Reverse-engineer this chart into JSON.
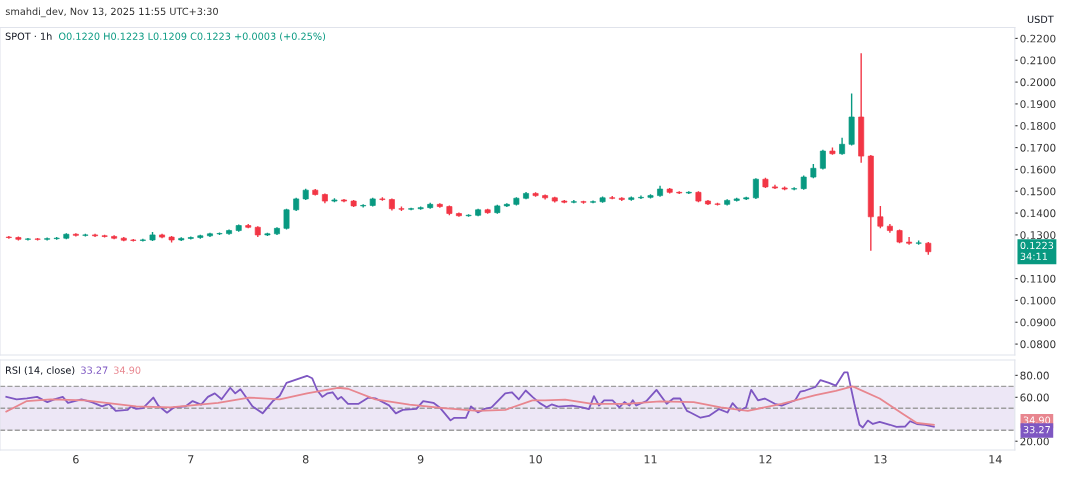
{
  "chart_data": [
    {
      "type": "candlestick",
      "title": "SPOT · 1h",
      "annotations": [
        "smahdi_dev, Nov 13, 2025 11:55 UTC+3:30",
        "O0.1220 H0.1223 L0.1209 C0.1223 +0.0003 (+0.25%)",
        "USDT",
        "0.1223",
        "34:11"
      ],
      "x": [
        5.417,
        5.5,
        5.583,
        5.667,
        5.75,
        5.833,
        5.917,
        6,
        6.083,
        6.167,
        6.25,
        6.333,
        6.417,
        6.5,
        6.583,
        6.667,
        6.75,
        6.833,
        6.917,
        7,
        7.083,
        7.167,
        7.25,
        7.333,
        7.417,
        7.5,
        7.583,
        7.667,
        7.75,
        7.833,
        7.917,
        8,
        8.083,
        8.167,
        8.25,
        8.333,
        8.417,
        8.5,
        8.583,
        8.667,
        8.75,
        8.833,
        8.917,
        9,
        9.083,
        9.167,
        9.25,
        9.333,
        9.417,
        9.5,
        9.583,
        9.667,
        9.75,
        9.833,
        9.917,
        10,
        10.083,
        10.167,
        10.25,
        10.333,
        10.417,
        10.5,
        10.583,
        10.667,
        10.75,
        10.833,
        10.917,
        11,
        11.083,
        11.167,
        11.25,
        11.333,
        11.417,
        11.5,
        11.583,
        11.667,
        11.75,
        11.833,
        11.917,
        12,
        12.083,
        12.167,
        12.25,
        12.333,
        12.417,
        12.5,
        12.583,
        12.667,
        12.75,
        12.833,
        12.917,
        13,
        13.083,
        13.167,
        13.25,
        13.333,
        13.417
      ],
      "ohlc": [
        [
          0.129,
          0.1295,
          0.1283,
          0.1288
        ],
        [
          0.1288,
          0.1293,
          0.1275,
          0.128
        ],
        [
          0.128,
          0.1286,
          0.1275,
          0.1281
        ],
        [
          0.1281,
          0.1286,
          0.1275,
          0.128
        ],
        [
          0.128,
          0.1288,
          0.1275,
          0.1283
        ],
        [
          0.1283,
          0.129,
          0.1278,
          0.1285
        ],
        [
          0.1285,
          0.1308,
          0.128,
          0.1303
        ],
        [
          0.1303,
          0.1308,
          0.1293,
          0.1298
        ],
        [
          0.1298,
          0.1305,
          0.1293,
          0.13
        ],
        [
          0.13,
          0.1305,
          0.1291,
          0.1296
        ],
        [
          0.1296,
          0.1301,
          0.1288,
          0.1293
        ],
        [
          0.1293,
          0.1298,
          0.128,
          0.1285
        ],
        [
          0.1285,
          0.129,
          0.1271,
          0.1276
        ],
        [
          0.1276,
          0.1281,
          0.127,
          0.1275
        ],
        [
          0.1275,
          0.1282,
          0.127,
          0.1277
        ],
        [
          0.1277,
          0.1313,
          0.1272,
          0.13
        ],
        [
          0.13,
          0.1305,
          0.1285,
          0.129
        ],
        [
          0.129,
          0.1295,
          0.1265,
          0.1277
        ],
        [
          0.1277,
          0.1289,
          0.1272,
          0.1284
        ],
        [
          0.1284,
          0.1293,
          0.1279,
          0.1288
        ],
        [
          0.1288,
          0.1301,
          0.1283,
          0.1296
        ],
        [
          0.1296,
          0.131,
          0.1291,
          0.1305
        ],
        [
          0.1305,
          0.1311,
          0.13,
          0.1306
        ],
        [
          0.1306,
          0.1325,
          0.1301,
          0.132
        ],
        [
          0.132,
          0.1348,
          0.1315,
          0.1343
        ],
        [
          0.1343,
          0.135,
          0.133,
          0.1335
        ],
        [
          0.1335,
          0.134,
          0.129,
          0.13
        ],
        [
          0.13,
          0.131,
          0.1295,
          0.1305
        ],
        [
          0.1305,
          0.1335,
          0.13,
          0.133
        ],
        [
          0.133,
          0.142,
          0.1325,
          0.1415
        ],
        [
          0.1415,
          0.147,
          0.141,
          0.1465
        ],
        [
          0.1465,
          0.1512,
          0.146,
          0.1505
        ],
        [
          0.1505,
          0.151,
          0.148,
          0.1485
        ],
        [
          0.1485,
          0.149,
          0.1445,
          0.1455
        ],
        [
          0.1455,
          0.1468,
          0.145,
          0.146
        ],
        [
          0.146,
          0.1465,
          0.145,
          0.1455
        ],
        [
          0.1455,
          0.146,
          0.1428,
          0.1433
        ],
        [
          0.1433,
          0.144,
          0.1426,
          0.1435
        ],
        [
          0.1435,
          0.147,
          0.143,
          0.1465
        ],
        [
          0.1465,
          0.1472,
          0.1457,
          0.1462
        ],
        [
          0.1462,
          0.1467,
          0.1412,
          0.142
        ],
        [
          0.142,
          0.143,
          0.141,
          0.1418
        ],
        [
          0.1418,
          0.1425,
          0.1413,
          0.142
        ],
        [
          0.142,
          0.143,
          0.1415,
          0.1425
        ],
        [
          0.1425,
          0.1447,
          0.142,
          0.144
        ],
        [
          0.144,
          0.1445,
          0.1425,
          0.143
        ],
        [
          0.143,
          0.1435,
          0.139,
          0.1398
        ],
        [
          0.1398,
          0.1403,
          0.1383,
          0.1388
        ],
        [
          0.1388,
          0.1395,
          0.1383,
          0.139
        ],
        [
          0.139,
          0.142,
          0.1385,
          0.1415
        ],
        [
          0.1415,
          0.142,
          0.1397,
          0.1402
        ],
        [
          0.1402,
          0.1438,
          0.1397,
          0.1433
        ],
        [
          0.1433,
          0.1445,
          0.1428,
          0.144
        ],
        [
          0.144,
          0.1473,
          0.1435,
          0.1468
        ],
        [
          0.1468,
          0.1497,
          0.1463,
          0.149
        ],
        [
          0.149,
          0.1495,
          0.1475,
          0.148
        ],
        [
          0.148,
          0.1485,
          0.1462,
          0.147
        ],
        [
          0.147,
          0.1475,
          0.1448,
          0.1455
        ],
        [
          0.1455,
          0.146,
          0.1445,
          0.145
        ],
        [
          0.145,
          0.146,
          0.1445,
          0.1452
        ],
        [
          0.1452,
          0.1457,
          0.1443,
          0.145
        ],
        [
          0.145,
          0.1458,
          0.1445,
          0.1452
        ],
        [
          0.1452,
          0.1476,
          0.1447,
          0.147
        ],
        [
          0.147,
          0.1478,
          0.1463,
          0.1468
        ],
        [
          0.1468,
          0.1473,
          0.1455,
          0.1462
        ],
        [
          0.1462,
          0.1476,
          0.1457,
          0.147
        ],
        [
          0.147,
          0.148,
          0.1465,
          0.1472
        ],
        [
          0.1472,
          0.1486,
          0.1467,
          0.148
        ],
        [
          0.148,
          0.1525,
          0.1475,
          0.151
        ],
        [
          0.151,
          0.1515,
          0.149,
          0.1495
        ],
        [
          0.1495,
          0.15,
          0.1487,
          0.1492
        ],
        [
          0.1492,
          0.15,
          0.1487,
          0.1495
        ],
        [
          0.1495,
          0.15,
          0.145,
          0.1455
        ],
        [
          0.1455,
          0.146,
          0.1437,
          0.1442
        ],
        [
          0.1442,
          0.1447,
          0.1435,
          0.144
        ],
        [
          0.144,
          0.1463,
          0.1435,
          0.1458
        ],
        [
          0.1458,
          0.147,
          0.1453,
          0.1465
        ],
        [
          0.1465,
          0.1475,
          0.146,
          0.147
        ],
        [
          0.147,
          0.156,
          0.1465,
          0.1555
        ],
        [
          0.1555,
          0.1562,
          0.1515,
          0.152
        ],
        [
          0.152,
          0.153,
          0.151,
          0.1515
        ],
        [
          0.1515,
          0.1522,
          0.1505,
          0.151
        ],
        [
          0.151,
          0.1518,
          0.1505,
          0.1512
        ],
        [
          0.1512,
          0.1572,
          0.1507,
          0.1565
        ],
        [
          0.1565,
          0.1625,
          0.156,
          0.1605
        ],
        [
          0.1605,
          0.169,
          0.16,
          0.1684
        ],
        [
          0.1684,
          0.17,
          0.1667,
          0.1672
        ],
        [
          0.1672,
          0.1745,
          0.1667,
          0.1715
        ],
        [
          0.1715,
          0.1948,
          0.171,
          0.184
        ],
        [
          0.184,
          0.2132,
          0.163,
          0.1661
        ],
        [
          0.1661,
          0.1666,
          0.1227,
          0.1383
        ],
        [
          0.1383,
          0.1432,
          0.133,
          0.134
        ],
        [
          0.134,
          0.135,
          0.131,
          0.132
        ],
        [
          0.132,
          0.1325,
          0.1262,
          0.1267
        ],
        [
          0.1267,
          0.129,
          0.1255,
          0.1262
        ],
        [
          0.1262,
          0.1275,
          0.1255,
          0.1262
        ],
        [
          0.1262,
          0.1267,
          0.1209,
          0.1223
        ]
      ],
      "colors": [
        "#f23645",
        "#f23645",
        "#089981",
        "#f23645",
        "#089981",
        "#089981",
        "#089981",
        "#f23645",
        "#089981",
        "#f23645",
        "#f23645",
        "#f23645",
        "#f23645",
        "#f23645",
        "#089981",
        "#089981",
        "#f23645",
        "#f23645",
        "#089981",
        "#089981",
        "#089981",
        "#089981",
        "#089981",
        "#089981",
        "#089981",
        "#f23645",
        "#f23645",
        "#089981",
        "#089981",
        "#089981",
        "#089981",
        "#089981",
        "#f23645",
        "#f23645",
        "#089981",
        "#f23645",
        "#f23645",
        "#089981",
        "#089981",
        "#f23645",
        "#f23645",
        "#f23645",
        "#089981",
        "#089981",
        "#089981",
        "#f23645",
        "#f23645",
        "#f23645",
        "#089981",
        "#089981",
        "#f23645",
        "#089981",
        "#089981",
        "#089981",
        "#089981",
        "#f23645",
        "#f23645",
        "#f23645",
        "#f23645",
        "#089981",
        "#f23645",
        "#089981",
        "#089981",
        "#f23645",
        "#f23645",
        "#089981",
        "#089981",
        "#089981",
        "#089981",
        "#f23645",
        "#f23645",
        "#089981",
        "#f23645",
        "#f23645",
        "#f23645",
        "#089981",
        "#089981",
        "#089981",
        "#089981",
        "#f23645",
        "#f23645",
        "#f23645",
        "#089981",
        "#089981",
        "#089981",
        "#089981",
        "#f23645",
        "#089981",
        "#089981",
        "#f23645",
        "#f23645",
        "#f23645",
        "#f23645",
        "#f23645",
        "#f23645",
        "#089981",
        "#f23645"
      ],
      "xlim": [
        5.34,
        14.17
      ],
      "ylim": [
        0.075,
        0.225
      ],
      "yticks": [
        {
          "value": 0.08,
          "label": "0.0800"
        },
        {
          "value": 0.09,
          "label": "0.0900"
        },
        {
          "value": 0.1,
          "label": "0.1000"
        },
        {
          "value": 0.11,
          "label": "0.1100"
        },
        {
          "value": 0.13,
          "label": "0.1300"
        },
        {
          "value": 0.14,
          "label": "0.1400"
        },
        {
          "value": 0.15,
          "label": "0.1500"
        },
        {
          "value": 0.16,
          "label": "0.1600"
        },
        {
          "value": 0.17,
          "label": "0.1700"
        },
        {
          "value": 0.18,
          "label": "0.1800"
        },
        {
          "value": 0.19,
          "label": "0.1900"
        },
        {
          "value": 0.2,
          "label": "0.2000"
        },
        {
          "value": 0.21,
          "label": "0.2100"
        },
        {
          "value": 0.22,
          "label": "0.2200"
        }
      ],
      "tick_labels": "y"
    },
    {
      "type": "line",
      "title": "RSI (14, close)",
      "annotations": [
        "33.27",
        "34.90",
        "34.90",
        "33.27"
      ],
      "series": [
        {
          "color": "#7e57c2",
          "x": [
            5.395,
            5.485,
            5.574,
            5.663,
            5.752,
            5.812,
            5.886,
            5.931,
            6.049,
            6.139,
            6.228,
            6.287,
            6.347,
            6.451,
            6.48,
            6.525,
            6.584,
            6.674,
            6.718,
            6.793,
            6.852,
            6.956,
            7.016,
            7.09,
            7.149,
            7.209,
            7.268,
            7.343,
            7.387,
            7.432,
            7.536,
            7.625,
            7.714,
            7.774,
            7.833,
            7.922,
            8.011,
            8.056,
            8.101,
            8.145,
            8.19,
            8.234,
            8.279,
            8.309,
            8.368,
            8.457,
            8.547,
            8.606,
            8.725,
            8.784,
            8.844,
            8.963,
            9.022,
            9.111,
            9.171,
            9.26,
            9.29,
            9.394,
            9.438,
            9.498,
            9.557,
            9.617,
            9.736,
            9.795,
            9.854,
            9.914,
            9.973,
            10.037,
            10.096,
            10.14,
            10.199,
            10.317,
            10.405,
            10.464,
            10.508,
            10.552,
            10.596,
            10.67,
            10.729,
            10.773,
            10.817,
            10.846,
            10.876,
            10.964,
            11.052,
            11.141,
            11.199,
            11.258,
            11.317,
            11.347,
            11.435,
            11.508,
            11.597,
            11.67,
            11.714,
            11.773,
            11.832,
            11.876,
            11.935,
            11.994,
            12.082,
            12.141,
            12.259,
            12.303,
            12.347,
            12.435,
            12.479,
            12.553,
            12.612,
            12.685,
            12.715,
            12.774,
            12.818,
            12.847,
            12.891,
            12.935,
            12.994,
            13.083,
            13.141,
            13.215,
            13.259,
            13.318,
            13.391,
            13.465
          ],
          "values": [
            60.4,
            58.2,
            59.1,
            60.4,
            55.6,
            58.2,
            60.4,
            55.0,
            58.2,
            55.6,
            51.8,
            54.0,
            47.6,
            48.6,
            51.8,
            49.5,
            50.2,
            59.8,
            52.4,
            46.0,
            50.8,
            51.8,
            56.6,
            53.4,
            60.4,
            63.6,
            58.2,
            68.7,
            63.6,
            67.4,
            51.8,
            45.4,
            56.6,
            61.4,
            73.2,
            76.4,
            79.6,
            77.4,
            66.2,
            60.4,
            63.6,
            64.6,
            58.2,
            60.4,
            54.0,
            54.0,
            59.8,
            59.1,
            52.7,
            45.4,
            48.6,
            49.5,
            56.6,
            55.0,
            50.2,
            39.0,
            41.2,
            41.2,
            51.8,
            46.3,
            49.5,
            50.8,
            63.6,
            64.6,
            58.2,
            66.2,
            60.4,
            54.7,
            50.9,
            53.5,
            51.6,
            52.5,
            50.9,
            49.3,
            61.1,
            52.5,
            57.3,
            57.3,
            50.9,
            55.7,
            52.5,
            57.3,
            52.5,
            56.6,
            66.8,
            54.1,
            58.9,
            58.9,
            47.7,
            46.2,
            41.4,
            43.0,
            49.3,
            46.2,
            54.7,
            47.7,
            50.9,
            66.8,
            57.3,
            58.9,
            54.1,
            52.5,
            57.3,
            65.2,
            66.2,
            69.4,
            75.7,
            73.2,
            70.6,
            82.7,
            82.7,
            54.1,
            35.0,
            32.5,
            38.8,
            35.7,
            37.6,
            35.0,
            33.1,
            33.4,
            38.2,
            35.7,
            35.0,
            33.27
          ]
        },
        {
          "color": "#e8868f",
          "x": [
            5.395,
            5.574,
            5.782,
            6.079,
            6.525,
            6.822,
            7.238,
            7.506,
            7.774,
            8.011,
            8.279,
            8.368,
            8.606,
            8.903,
            9.2,
            9.498,
            9.736,
            9.973,
            10.082,
            10.258,
            10.494,
            10.788,
            11.082,
            11.376,
            11.611,
            11.847,
            12.141,
            12.435,
            12.612,
            12.759,
            12.994,
            13.2,
            13.318,
            13.465
          ],
          "values": [
            47.0,
            56.6,
            58.2,
            57.2,
            51.8,
            50.8,
            55.0,
            59.8,
            58.2,
            63.6,
            68.7,
            67.8,
            58.2,
            53.4,
            50.2,
            47.6,
            48.6,
            57.2,
            57.3,
            57.9,
            54.1,
            54.1,
            56.3,
            55.7,
            50.9,
            47.7,
            54.1,
            62.0,
            65.9,
            70.0,
            58.9,
            44.6,
            36.6,
            34.9
          ]
        }
      ],
      "bands": [
        {
          "axis": "y",
          "from": 30,
          "to": 70,
          "color": "#ede7f6"
        }
      ],
      "ref_lines": [
        {
          "axis": "y",
          "value": 70,
          "color": "#9e9e9e",
          "line_style": "dashed"
        },
        {
          "axis": "y",
          "value": 50,
          "color": "#9e9e9e",
          "line_style": "dashed"
        },
        {
          "axis": "y",
          "value": 30,
          "color": "#9e9e9e",
          "line_style": "dashed"
        }
      ],
      "xlim": [
        5.34,
        14.17
      ],
      "ylim": [
        12,
        94
      ],
      "xticks": [
        6,
        7,
        8,
        9,
        10,
        11,
        12,
        13,
        14
      ],
      "yticks": [
        {
          "value": 20,
          "label": "20.00"
        },
        {
          "value": 60,
          "label": "60.00"
        },
        {
          "value": 80,
          "label": "80.00"
        }
      ],
      "line_style": "solid",
      "marker": "none"
    }
  ]
}
